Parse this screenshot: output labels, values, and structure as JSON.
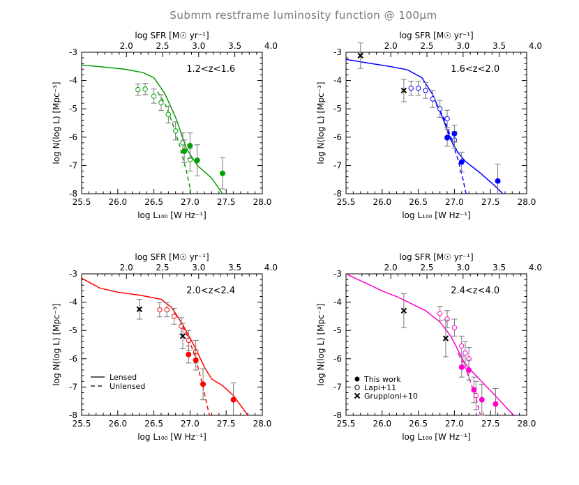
{
  "title": "Submm restframe luminosity function @ 100µm",
  "chart_data": [
    {
      "type": "scatter",
      "panel_label": "1.2<z<1.6",
      "color": "#00a000",
      "xlabel": "log L₁₀₀ [W Hz⁻¹]",
      "ylabel": "log N(log L) [Mpc⁻³]",
      "top_xlabel": "log SFR [M☉ yr⁻¹]",
      "xlim": [
        25.5,
        28.0
      ],
      "ylim": [
        -8,
        -3
      ],
      "xticks": [
        "25.5",
        "26.0",
        "26.5",
        "27.0",
        "27.5",
        "28.0"
      ],
      "yticks": [
        "-3",
        "-4",
        "-5",
        "-6",
        "-7",
        "-8"
      ],
      "top_ticks": [
        "2.0",
        "2.5",
        "3.0",
        "3.5",
        "4.0"
      ],
      "lensed_line": [
        [
          25.5,
          -3.45
        ],
        [
          25.8,
          -3.52
        ],
        [
          26.1,
          -3.6
        ],
        [
          26.35,
          -3.72
        ],
        [
          26.5,
          -3.9
        ],
        [
          26.65,
          -4.45
        ],
        [
          26.8,
          -5.3
        ],
        [
          26.95,
          -6.4
        ],
        [
          27.1,
          -7.0
        ],
        [
          27.3,
          -7.45
        ],
        [
          27.45,
          -8.0
        ]
      ],
      "unlensed_line": [
        [
          26.55,
          -4.4
        ],
        [
          26.65,
          -4.8
        ],
        [
          26.75,
          -5.45
        ],
        [
          26.85,
          -6.25
        ],
        [
          26.95,
          -7.2
        ],
        [
          27.0,
          -7.8
        ],
        [
          27.01,
          -8.0
        ]
      ],
      "this_work": [
        {
          "x": 26.92,
          "y": -6.5,
          "err": 0.4
        },
        {
          "x": 27.0,
          "y": -6.3,
          "err": 0.45
        },
        {
          "x": 27.1,
          "y": -6.82,
          "err": 0.55
        },
        {
          "x": 27.45,
          "y": -7.28,
          "err": 0.55
        }
      ],
      "lapi11": [
        {
          "x": 26.28,
          "y": -4.32,
          "err": 0.2
        },
        {
          "x": 26.38,
          "y": -4.3,
          "err": 0.2
        },
        {
          "x": 26.5,
          "y": -4.55,
          "err": 0.25
        },
        {
          "x": 26.6,
          "y": -4.78,
          "err": 0.28
        },
        {
          "x": 26.7,
          "y": -5.2,
          "err": 0.3
        },
        {
          "x": 26.8,
          "y": -5.78,
          "err": 0.32
        },
        {
          "x": 26.9,
          "y": -6.2,
          "err": 0.35
        },
        {
          "x": 27.0,
          "y": -6.8,
          "err": 0.4
        }
      ],
      "gruppioni10": []
    },
    {
      "type": "scatter",
      "panel_label": "1.6<z<2.0",
      "color": "#0000ff",
      "xlabel": "log L₁₀₀ [W Hz⁻¹]",
      "ylabel": "log N(log L) [Mpc⁻³]",
      "top_xlabel": "log SFR [M☉ yr⁻¹]",
      "xlim": [
        25.5,
        28.0
      ],
      "ylim": [
        -8,
        -3
      ],
      "xticks": [
        "25.5",
        "26.0",
        "26.5",
        "27.0",
        "27.5",
        "28.0"
      ],
      "yticks": [
        "-3",
        "-4",
        "-5",
        "-6",
        "-7",
        "-8"
      ],
      "top_ticks": [
        "2.0",
        "2.5",
        "3.0",
        "3.5",
        "4.0"
      ],
      "lensed_line": [
        [
          25.5,
          -3.25
        ],
        [
          25.8,
          -3.38
        ],
        [
          26.1,
          -3.5
        ],
        [
          26.35,
          -3.62
        ],
        [
          26.55,
          -3.9
        ],
        [
          26.7,
          -4.5
        ],
        [
          26.85,
          -5.4
        ],
        [
          26.95,
          -6.1
        ],
        [
          27.05,
          -6.55
        ],
        [
          27.15,
          -6.85
        ],
        [
          27.35,
          -7.25
        ],
        [
          27.55,
          -7.7
        ],
        [
          27.67,
          -8.0
        ]
      ],
      "unlensed_line": [
        [
          26.75,
          -4.85
        ],
        [
          26.85,
          -5.3
        ],
        [
          26.95,
          -6.0
        ],
        [
          27.05,
          -6.8
        ],
        [
          27.12,
          -7.5
        ],
        [
          27.16,
          -8.0
        ]
      ],
      "this_work": [
        {
          "x": 26.9,
          "y": -6.02,
          "err": 0.3
        },
        {
          "x": 27.0,
          "y": -5.88,
          "err": 0.3
        },
        {
          "x": 27.1,
          "y": -6.88,
          "err": 0.35
        },
        {
          "x": 27.6,
          "y": -7.55,
          "err": 0.6
        }
      ],
      "lapi11": [
        {
          "x": 26.4,
          "y": -4.27,
          "err": 0.25
        },
        {
          "x": 26.5,
          "y": -4.27,
          "err": 0.25
        },
        {
          "x": 26.6,
          "y": -4.35,
          "err": 0.28
        },
        {
          "x": 26.7,
          "y": -4.65,
          "err": 0.3
        },
        {
          "x": 26.8,
          "y": -5.0,
          "err": 0.3
        },
        {
          "x": 26.9,
          "y": -5.35,
          "err": 0.3
        },
        {
          "x": 27.0,
          "y": -6.1,
          "err": 0.3
        }
      ],
      "gruppioni10": [
        {
          "x": 25.7,
          "y": -3.12,
          "err": 0.45
        },
        {
          "x": 26.3,
          "y": -4.35,
          "err": 0.4
        }
      ]
    },
    {
      "type": "scatter",
      "panel_label": "2.0<z<2.4",
      "color": "#ff0000",
      "xlabel": "log L₁₀₀ [W Hz⁻¹]",
      "ylabel": "log N(log L) [Mpc⁻³]",
      "top_xlabel": "log SFR [M☉ yr⁻¹]",
      "xlim": [
        25.5,
        28.0
      ],
      "ylim": [
        -8,
        -3
      ],
      "xticks": [
        "25.5",
        "26.0",
        "26.5",
        "27.0",
        "27.5",
        "28.0"
      ],
      "yticks": [
        "-3",
        "-4",
        "-5",
        "-6",
        "-7",
        "-8"
      ],
      "top_ticks": [
        "2.0",
        "2.5",
        "3.0",
        "3.5",
        "4.0"
      ],
      "legend": {
        "lensed": "Lensed",
        "unlensed": "Unlensed"
      },
      "lensed_line": [
        [
          25.5,
          -3.15
        ],
        [
          25.75,
          -3.5
        ],
        [
          26.0,
          -3.65
        ],
        [
          26.3,
          -3.75
        ],
        [
          26.6,
          -3.9
        ],
        [
          26.75,
          -4.2
        ],
        [
          26.9,
          -4.8
        ],
        [
          27.05,
          -5.5
        ],
        [
          27.2,
          -6.3
        ],
        [
          27.3,
          -6.72
        ],
        [
          27.45,
          -6.95
        ],
        [
          27.6,
          -7.3
        ],
        [
          27.8,
          -8.0
        ]
      ],
      "unlensed_line": [
        [
          26.9,
          -4.85
        ],
        [
          27.0,
          -5.4
        ],
        [
          27.1,
          -6.2
        ],
        [
          27.18,
          -7.0
        ],
        [
          27.25,
          -7.8
        ],
        [
          27.27,
          -8.0
        ]
      ],
      "this_work": [
        {
          "x": 26.98,
          "y": -5.85,
          "err": 0.3
        },
        {
          "x": 27.08,
          "y": -6.05,
          "err": 0.35
        },
        {
          "x": 27.18,
          "y": -6.9,
          "err": 0.55
        },
        {
          "x": 27.6,
          "y": -7.45,
          "err": 0.6
        }
      ],
      "lapi11": [
        {
          "x": 26.58,
          "y": -4.27,
          "err": 0.25
        },
        {
          "x": 26.68,
          "y": -4.27,
          "err": 0.25
        },
        {
          "x": 26.78,
          "y": -4.5,
          "err": 0.28
        },
        {
          "x": 26.88,
          "y": -4.85,
          "err": 0.3
        },
        {
          "x": 26.98,
          "y": -5.35,
          "err": 0.35
        },
        {
          "x": 27.08,
          "y": -5.75,
          "err": 0.4
        }
      ],
      "gruppioni10": [
        {
          "x": 26.3,
          "y": -4.25,
          "err": 0.35
        },
        {
          "x": 26.9,
          "y": -5.2,
          "err": 0.45
        }
      ]
    },
    {
      "type": "scatter",
      "panel_label": "2.4<z<4.0",
      "color": "#ff00cc",
      "xlabel": "log L₁₀₀ [W Hz⁻¹]",
      "ylabel": "log N(log L) [Mpc⁻³]",
      "top_xlabel": "log SFR [M☉ yr⁻¹]",
      "xlim": [
        25.5,
        28.0
      ],
      "ylim": [
        -8,
        -3
      ],
      "xticks": [
        "25.5",
        "26.0",
        "26.5",
        "27.0",
        "27.5",
        "28.0"
      ],
      "yticks": [
        "-3",
        "-4",
        "-5",
        "-6",
        "-7",
        "-8"
      ],
      "top_ticks": [
        "2.0",
        "2.5",
        "3.0",
        "3.5",
        "4.0"
      ],
      "legend": {
        "this_work": "This work",
        "lapi11": "Lapi+11",
        "gruppioni10": "Gruppioni+10"
      },
      "lensed_line": [
        [
          25.5,
          -3.0
        ],
        [
          25.75,
          -3.3
        ],
        [
          26.0,
          -3.6
        ],
        [
          26.2,
          -3.8
        ],
        [
          26.4,
          -4.05
        ],
        [
          26.6,
          -4.3
        ],
        [
          26.8,
          -4.7
        ],
        [
          26.95,
          -5.2
        ],
        [
          27.05,
          -5.7
        ],
        [
          27.15,
          -6.2
        ],
        [
          27.3,
          -6.6
        ],
        [
          27.45,
          -7.0
        ],
        [
          27.6,
          -7.4
        ],
        [
          27.8,
          -7.95
        ],
        [
          27.83,
          -8.0
        ]
      ],
      "unlensed_line": [
        [
          27.05,
          -5.8
        ],
        [
          27.15,
          -6.3
        ],
        [
          27.22,
          -6.8
        ],
        [
          27.3,
          -7.4
        ],
        [
          27.36,
          -8.0
        ]
      ],
      "this_work": [
        {
          "x": 27.1,
          "y": -6.3,
          "err": 0.35
        },
        {
          "x": 27.2,
          "y": -6.4,
          "err": 0.35
        },
        {
          "x": 27.27,
          "y": -7.1,
          "err": 0.45
        },
        {
          "x": 27.38,
          "y": -7.45,
          "err": 0.55
        },
        {
          "x": 27.57,
          "y": -7.6,
          "err": 0.55
        }
      ],
      "lapi11": [
        {
          "x": 26.8,
          "y": -4.4,
          "err": 0.25
        },
        {
          "x": 26.9,
          "y": -4.6,
          "err": 0.3
        },
        {
          "x": 27.0,
          "y": -4.9,
          "err": 0.3
        },
        {
          "x": 27.1,
          "y": -5.55,
          "err": 0.35
        },
        {
          "x": 27.15,
          "y": -5.8,
          "err": 0.4
        },
        {
          "x": 27.2,
          "y": -6.0,
          "err": 0.4
        },
        {
          "x": 27.3,
          "y": -7.3,
          "err": 0.5
        }
      ],
      "gruppioni10": [
        {
          "x": 26.3,
          "y": -4.3,
          "err": 0.6
        },
        {
          "x": 26.88,
          "y": -5.28,
          "err": 0.65
        }
      ]
    }
  ]
}
